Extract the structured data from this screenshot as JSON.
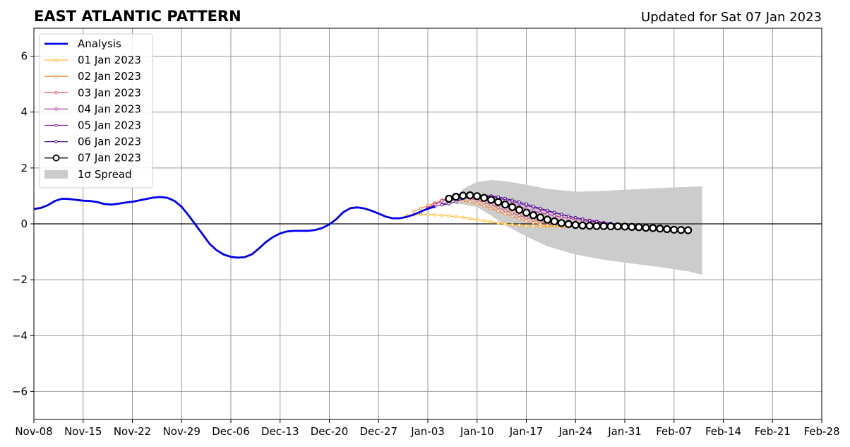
{
  "chart_data": {
    "type": "line",
    "title": "EAST ATLANTIC PATTERN",
    "subtitle": "Updated for Sat 07 Jan 2023",
    "xlabel": "",
    "ylabel": "",
    "x_range": [
      "2022-11-08",
      "2023-02-28"
    ],
    "ylim": [
      -7,
      7
    ],
    "grid": true,
    "legend_position": "upper-left",
    "x_ticks": [
      {
        "date": "2022-11-08",
        "label": "Nov-08"
      },
      {
        "date": "2022-11-15",
        "label": "Nov-15"
      },
      {
        "date": "2022-11-22",
        "label": "Nov-22"
      },
      {
        "date": "2022-11-29",
        "label": "Nov-29"
      },
      {
        "date": "2022-12-06",
        "label": "Dec-06"
      },
      {
        "date": "2022-12-13",
        "label": "Dec-13"
      },
      {
        "date": "2022-12-20",
        "label": "Dec-20"
      },
      {
        "date": "2022-12-27",
        "label": "Dec-27"
      },
      {
        "date": "2023-01-03",
        "label": "Jan-03"
      },
      {
        "date": "2023-01-10",
        "label": "Jan-10"
      },
      {
        "date": "2023-01-17",
        "label": "Jan-17"
      },
      {
        "date": "2023-01-24",
        "label": "Jan-24"
      },
      {
        "date": "2023-01-31",
        "label": "Jan-31"
      },
      {
        "date": "2023-02-07",
        "label": "Feb-07"
      },
      {
        "date": "2023-02-14",
        "label": "Feb-14"
      },
      {
        "date": "2023-02-21",
        "label": "Feb-21"
      },
      {
        "date": "2023-02-28",
        "label": "Feb-28"
      }
    ],
    "y_ticks": [
      {
        "value": 6,
        "label": "6"
      },
      {
        "value": 4,
        "label": "4"
      },
      {
        "value": 2,
        "label": "2"
      },
      {
        "value": 0,
        "label": "0"
      },
      {
        "value": -2,
        "label": "−2"
      },
      {
        "value": -4,
        "label": "−4"
      },
      {
        "value": -6,
        "label": "−6"
      }
    ],
    "analysis": {
      "name": "Analysis",
      "color": "#0000ee",
      "points": [
        [
          "2022-11-08",
          0.53
        ],
        [
          "2022-11-09",
          0.57
        ],
        [
          "2022-11-10",
          0.67
        ],
        [
          "2022-11-11",
          0.82
        ],
        [
          "2022-11-12",
          0.9
        ],
        [
          "2022-11-13",
          0.89
        ],
        [
          "2022-11-14",
          0.86
        ],
        [
          "2022-11-15",
          0.83
        ],
        [
          "2022-11-16",
          0.82
        ],
        [
          "2022-11-17",
          0.78
        ],
        [
          "2022-11-18",
          0.71
        ],
        [
          "2022-11-19",
          0.69
        ],
        [
          "2022-11-20",
          0.72
        ],
        [
          "2022-11-21",
          0.76
        ],
        [
          "2022-11-22",
          0.79
        ],
        [
          "2022-11-23",
          0.84
        ],
        [
          "2022-11-24",
          0.89
        ],
        [
          "2022-11-25",
          0.94
        ],
        [
          "2022-11-26",
          0.96
        ],
        [
          "2022-11-27",
          0.93
        ],
        [
          "2022-11-28",
          0.82
        ],
        [
          "2022-11-29",
          0.61
        ],
        [
          "2022-11-30",
          0.3
        ],
        [
          "2022-12-01",
          -0.04
        ],
        [
          "2022-12-02",
          -0.38
        ],
        [
          "2022-12-03",
          -0.72
        ],
        [
          "2022-12-04",
          -0.95
        ],
        [
          "2022-12-05",
          -1.1
        ],
        [
          "2022-12-06",
          -1.18
        ],
        [
          "2022-12-07",
          -1.21
        ],
        [
          "2022-12-08",
          -1.19
        ],
        [
          "2022-12-09",
          -1.09
        ],
        [
          "2022-12-10",
          -0.88
        ],
        [
          "2022-12-11",
          -0.65
        ],
        [
          "2022-12-12",
          -0.47
        ],
        [
          "2022-12-13",
          -0.34
        ],
        [
          "2022-12-14",
          -0.27
        ],
        [
          "2022-12-15",
          -0.25
        ],
        [
          "2022-12-16",
          -0.25
        ],
        [
          "2022-12-17",
          -0.25
        ],
        [
          "2022-12-18",
          -0.22
        ],
        [
          "2022-12-19",
          -0.15
        ],
        [
          "2022-12-20",
          -0.02
        ],
        [
          "2022-12-21",
          0.17
        ],
        [
          "2022-12-22",
          0.42
        ],
        [
          "2022-12-23",
          0.56
        ],
        [
          "2022-12-24",
          0.59
        ],
        [
          "2022-12-25",
          0.55
        ],
        [
          "2022-12-26",
          0.47
        ],
        [
          "2022-12-27",
          0.37
        ],
        [
          "2022-12-28",
          0.26
        ],
        [
          "2022-12-29",
          0.2
        ],
        [
          "2022-12-30",
          0.2
        ],
        [
          "2022-12-31",
          0.25
        ],
        [
          "2023-01-01",
          0.33
        ],
        [
          "2023-01-02",
          0.44
        ],
        [
          "2023-01-03",
          0.54
        ],
        [
          "2023-01-04",
          0.62
        ]
      ]
    },
    "forecasts": [
      {
        "name": "01 Jan 2023",
        "color": "#ffb822",
        "start": "2022-12-31",
        "values": [
          0.3,
          0.32,
          0.33,
          0.33,
          0.32,
          0.3,
          0.28,
          0.26,
          0.23,
          0.19,
          0.15,
          0.11,
          0.07,
          0.03,
          0.0,
          -0.03,
          -0.05,
          -0.07,
          -0.08,
          -0.09,
          -0.09,
          -0.09,
          -0.1,
          -0.1,
          -0.1,
          -0.1,
          -0.1,
          -0.1,
          -0.1,
          -0.1,
          -0.1,
          -0.1,
          -0.11,
          -0.11,
          -0.11,
          -0.12,
          -0.12,
          -0.12
        ]
      },
      {
        "name": "02 Jan 2023",
        "color": "#f58c3a",
        "start": "2023-01-01",
        "values": [
          0.45,
          0.55,
          0.65,
          0.75,
          0.82,
          0.85,
          0.84,
          0.82,
          0.78,
          0.72,
          0.64,
          0.55,
          0.46,
          0.36,
          0.27,
          0.18,
          0.1,
          0.04,
          -0.01,
          -0.04,
          -0.06,
          -0.07,
          -0.08,
          -0.09,
          -0.09,
          -0.1,
          -0.1,
          -0.11,
          -0.11,
          -0.12,
          -0.12,
          -0.12,
          -0.13,
          -0.13,
          -0.14,
          -0.14,
          -0.15
        ]
      },
      {
        "name": "03 Jan 2023",
        "color": "#e35b6b",
        "start": "2023-01-02",
        "values": [
          0.4,
          0.58,
          0.72,
          0.85,
          0.93,
          0.96,
          0.95,
          0.91,
          0.85,
          0.77,
          0.68,
          0.58,
          0.48,
          0.39,
          0.3,
          0.22,
          0.15,
          0.09,
          0.04,
          0.01,
          -0.02,
          -0.04,
          -0.06,
          -0.07,
          -0.08,
          -0.09,
          -0.1,
          -0.11,
          -0.12,
          -0.13,
          -0.13,
          -0.14,
          -0.15,
          -0.16,
          -0.16,
          -0.17
        ]
      },
      {
        "name": "04 Jan 2023",
        "color": "#b53a9c",
        "start": "2023-01-03",
        "values": [
          0.55,
          0.68,
          0.82,
          0.93,
          1.0,
          1.02,
          1.01,
          0.98,
          0.94,
          0.88,
          0.82,
          0.75,
          0.68,
          0.61,
          0.53,
          0.46,
          0.4,
          0.34,
          0.29,
          0.24,
          0.2,
          0.16,
          0.12,
          0.08,
          0.05,
          0.02,
          0.0,
          -0.03,
          -0.05,
          -0.07,
          -0.09,
          -0.11,
          -0.13,
          -0.15,
          -0.16
        ]
      },
      {
        "name": "05 Jan 2023",
        "color": "#8a1fb0",
        "start": "2023-01-04",
        "values": [
          0.62,
          0.7,
          0.8,
          0.9,
          0.97,
          1.01,
          1.02,
          1.0,
          0.97,
          0.92,
          0.86,
          0.8,
          0.73,
          0.66,
          0.59,
          0.52,
          0.45,
          0.39,
          0.33,
          0.27,
          0.22,
          0.17,
          0.13,
          0.09,
          0.05,
          0.02,
          -0.01,
          -0.04,
          -0.07,
          -0.09,
          -0.11,
          -0.13,
          -0.15,
          -0.17
        ]
      },
      {
        "name": "06 Jan 2023",
        "color": "#4a0d8f",
        "start": "2023-01-05",
        "values": [
          0.68,
          0.72,
          0.8,
          0.9,
          0.97,
          1.01,
          1.02,
          1.0,
          0.96,
          0.91,
          0.85,
          0.78,
          0.71,
          0.63,
          0.55,
          0.48,
          0.41,
          0.34,
          0.28,
          0.22,
          0.17,
          0.12,
          0.08,
          0.04,
          0.01,
          -0.02,
          -0.05,
          -0.08,
          -0.1,
          -0.12,
          -0.14,
          -0.16,
          -0.18
        ]
      },
      {
        "name": "07 Jan 2023",
        "color": "#000000",
        "start": "2023-01-06",
        "values": [
          0.9,
          0.97,
          1.01,
          1.02,
          0.99,
          0.93,
          0.86,
          0.78,
          0.69,
          0.6,
          0.5,
          0.4,
          0.31,
          0.23,
          0.15,
          0.09,
          0.03,
          -0.01,
          -0.04,
          -0.06,
          -0.07,
          -0.08,
          -0.08,
          -0.09,
          -0.09,
          -0.1,
          -0.11,
          -0.12,
          -0.14,
          -0.15,
          -0.17,
          -0.19,
          -0.21,
          -0.22,
          -0.23
        ]
      }
    ],
    "spread": {
      "name": "1σ Spread",
      "color": "#cccccc",
      "points": [
        [
          "2023-01-07",
          0.9,
          0.7
        ],
        [
          "2023-01-08",
          1.25,
          0.7
        ],
        [
          "2023-01-10",
          1.5,
          0.6
        ],
        [
          "2023-01-12",
          1.57,
          0.3
        ],
        [
          "2023-01-14",
          1.53,
          -0.05
        ],
        [
          "2023-01-17",
          1.4,
          -0.45
        ],
        [
          "2023-01-20",
          1.25,
          -0.8
        ],
        [
          "2023-01-24",
          1.15,
          -1.1
        ],
        [
          "2023-01-28",
          1.18,
          -1.28
        ],
        [
          "2023-02-01",
          1.23,
          -1.42
        ],
        [
          "2023-02-05",
          1.28,
          -1.55
        ],
        [
          "2023-02-09",
          1.32,
          -1.7
        ],
        [
          "2023-02-11",
          1.35,
          -1.82
        ]
      ]
    },
    "zero_line": 0
  }
}
